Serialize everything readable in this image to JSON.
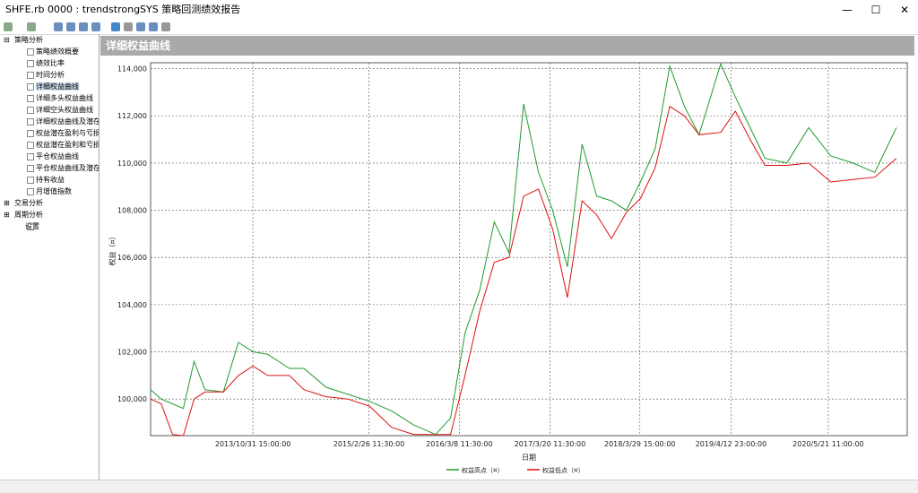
{
  "window": {
    "title": "SHFE.rb 0000 : trendstrongSYS 策略回测绩效报告"
  },
  "tree": {
    "groups": [
      {
        "label": "策略分析",
        "children": [
          "策略绩效概要",
          "绩效比率",
          "时间分析",
          "详细权益曲线",
          "详细多头权益曲线",
          "详细空头权益曲线",
          "详细权益曲线及潜在",
          "权益潜在盈利与亏损",
          "权益潜在盈利和亏损",
          "平仓权益曲线",
          "平仓权益曲线及潜在",
          "持有收益",
          "月增值指数"
        ]
      },
      {
        "label": "交易分析",
        "children": []
      },
      {
        "label": "周期分析",
        "children": []
      },
      {
        "label": "设置",
        "children": []
      }
    ],
    "selected": "详细权益曲线"
  },
  "panel": {
    "title": "详细权益曲线"
  },
  "chart_data": {
    "type": "line",
    "x_label": "日期",
    "y_label": "权益（¤）",
    "x": [
      "2012/9/1",
      "2012/10/15",
      "2012/12/1",
      "2013/1/15",
      "2013/3/1",
      "2013/4/15",
      "2013/7/1",
      "2013/9/1",
      "2013/11/1",
      "2014/1/1",
      "2014/4/1",
      "2014/6/1",
      "2014/9/1",
      "2014/12/1",
      "2015/3/1",
      "2015/6/1",
      "2015/9/1",
      "2015/12/1",
      "2016/2/1",
      "2016/4/1",
      "2016/6/1",
      "2016/8/1",
      "2016/10/1",
      "2016/12/1",
      "2017/2/1",
      "2017/4/1",
      "2017/6/1",
      "2017/8/1",
      "2017/10/1",
      "2017/12/1",
      "2018/2/1",
      "2018/4/1",
      "2018/6/1",
      "2018/8/1",
      "2018/10/1",
      "2018/12/1",
      "2019/3/1",
      "2019/5/1",
      "2019/7/1",
      "2019/9/1",
      "2019/12/1",
      "2020/3/1",
      "2020/6/1",
      "2020/9/1",
      "2020/12/1",
      "2021/3/1"
    ],
    "series": [
      {
        "name": "权益高点（¤）",
        "color": "#1f9a2f",
        "values": [
          100400,
          100000,
          99800,
          99600,
          101600,
          100400,
          100300,
          102400,
          102000,
          101900,
          101300,
          101300,
          100500,
          100200,
          99900,
          99500,
          98900,
          98500,
          99200,
          102800,
          104600,
          107500,
          106200,
          112500,
          109600,
          108000,
          105600,
          110800,
          108600,
          108400,
          108000,
          109200,
          110600,
          114100,
          112400,
          111200,
          114200,
          112800,
          111500,
          110200,
          110000,
          111500,
          110300,
          110000,
          109600,
          111500
        ]
      },
      {
        "name": "权益低点（¤）",
        "color": "#e01010",
        "values": [
          100000,
          99800,
          98500,
          98450,
          100000,
          100300,
          100300,
          101000,
          101400,
          101000,
          101000,
          100400,
          100100,
          100000,
          99700,
          98800,
          98500,
          98500,
          98500,
          101000,
          103700,
          105800,
          106000,
          108600,
          108900,
          107200,
          104300,
          108400,
          107800,
          106800,
          107900,
          108500,
          109800,
          112400,
          112000,
          111200,
          111300,
          112200,
          111000,
          109900,
          109900,
          110000,
          109200,
          109300,
          109400,
          110200
        ]
      }
    ],
    "xlim": [
      "2012/9/1",
      "2021/4/15"
    ],
    "xticks": [
      "2013/10/31 15:00:00",
      "2015/2/26 11:30:00",
      "2016/3/8 11:30:00",
      "2017/3/20 11:30:00",
      "2018/3/29 15:00:00",
      "2019/4/12 23:00:00",
      "2020/5/21 11:00:00"
    ],
    "ylim": [
      98450,
      114250
    ],
    "yticks": [
      {
        "value": 100000,
        "label": "100,000"
      },
      {
        "value": 102000,
        "label": "102,000"
      },
      {
        "value": 104000,
        "label": "104,000"
      },
      {
        "value": 106000,
        "label": "106,000"
      },
      {
        "value": 108000,
        "label": "108,000"
      },
      {
        "value": 110000,
        "label": "110,000"
      },
      {
        "value": 112000,
        "label": "112,000"
      },
      {
        "value": 114000,
        "label": "114,000"
      }
    ],
    "grid": true
  }
}
